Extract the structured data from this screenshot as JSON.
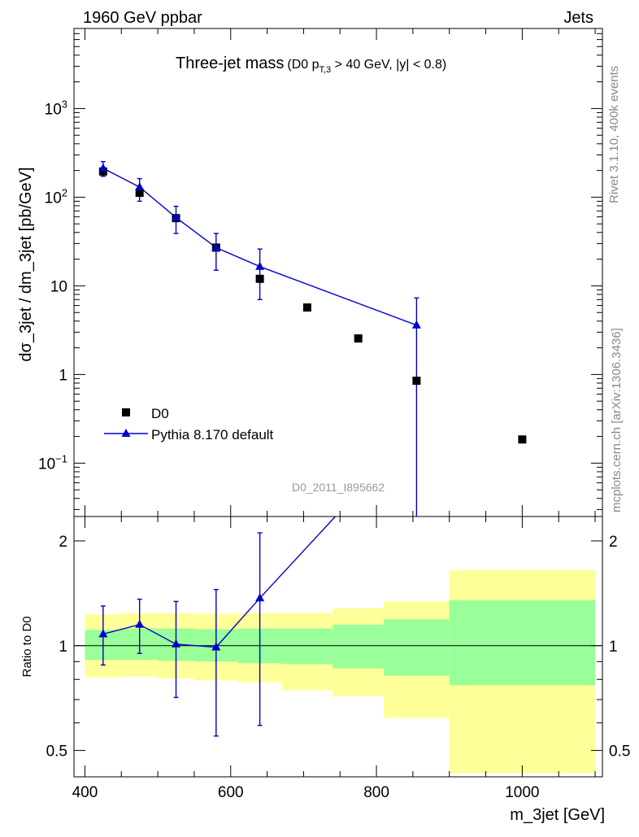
{
  "header": {
    "left": "1960 GeV ppbar",
    "right": "Jets"
  },
  "side_labels": {
    "rivet": "Rivet 3.1.10,  400k events",
    "mcplots": "mcplots.cern.ch [arXiv:1306.3436]"
  },
  "chart_data": {
    "type": "scatter",
    "title": "Three-jet mass",
    "title_cut_prefix": "(D0 p",
    "title_cut_subscript": "T,3",
    "title_cut_suffix": " > 40 GeV, |y| < 0.8)",
    "analysis_id": "D0_2011_I895662",
    "xlabel": "m_3jet [GeV]",
    "ylabel_top": "dσ_3jet / dm_3jet [pb/GeV]",
    "ylabel_ratio": "Ratio to D0",
    "xlim": [
      385,
      1110
    ],
    "ylim_top": [
      0.025,
      8000
    ],
    "yscale_top": "log",
    "ylim_ratio": [
      0.42,
      2.35
    ],
    "yscale_ratio": "log",
    "x_ticks": [
      400,
      600,
      800,
      1000
    ],
    "x_tick_labels": [
      "400",
      "600",
      "800",
      "1000"
    ],
    "y_ticks_top": [
      {
        "value": 0.1,
        "base": "10",
        "exp": "−1"
      },
      {
        "value": 1,
        "base": "1",
        "exp": ""
      },
      {
        "value": 10,
        "base": "10",
        "exp": ""
      },
      {
        "value": 100,
        "base": "10",
        "exp": "2"
      },
      {
        "value": 1000,
        "base": "10",
        "exp": "3"
      }
    ],
    "y_ticks_ratio": [
      {
        "value": 0.5,
        "label": "0.5"
      },
      {
        "value": 1,
        "label": "1"
      },
      {
        "value": 2,
        "label": "2"
      }
    ],
    "legend": {
      "position": "lower-left",
      "entries": [
        "D0",
        "Pythia 8.170 default"
      ]
    },
    "series": [
      {
        "name": "D0",
        "marker": "square",
        "color": "#000000",
        "x": [
          425,
          475,
          525,
          580,
          640,
          705,
          775,
          855,
          1000
        ],
        "y": [
          195,
          112,
          58,
          27,
          12,
          5.7,
          2.55,
          0.85,
          0.185
        ]
      },
      {
        "name": "Pythia 8.170 default",
        "marker": "triangle",
        "color": "#0000cc",
        "x": [
          425,
          475,
          525,
          580,
          640,
          855
        ],
        "y": [
          212,
          130,
          59,
          27,
          16.5,
          3.6
        ],
        "y_err_low": [
          40,
          40,
          20,
          12,
          9.5,
          3.6
        ],
        "y_err_high": [
          40,
          32,
          20,
          12,
          9.5,
          3.7
        ]
      }
    ],
    "ratio_series": {
      "name": "Pythia 8.170 default",
      "x": [
        425,
        475,
        525,
        580,
        640,
        855
      ],
      "y": [
        1.08,
        1.15,
        1.01,
        0.99,
        1.37,
        4.2
      ],
      "y_err_low": [
        0.2,
        0.2,
        0.3,
        0.44,
        0.78
      ],
      "y_err_high": [
        0.22,
        0.21,
        0.33,
        0.46,
        0.74
      ]
    },
    "uncertainty_bands": {
      "colors": {
        "outer": "#ffff99",
        "inner": "#99ff99"
      },
      "edges": [
        400,
        450,
        500,
        550,
        610,
        670,
        740,
        810,
        900,
        1100
      ],
      "outer_low": [
        0.81,
        0.815,
        0.805,
        0.795,
        0.785,
        0.745,
        0.715,
        0.62,
        0.43
      ],
      "outer_high": [
        1.23,
        1.24,
        1.24,
        1.235,
        1.24,
        1.24,
        1.28,
        1.34,
        1.65
      ],
      "inner_low": [
        0.91,
        0.91,
        0.905,
        0.9,
        0.89,
        0.885,
        0.86,
        0.82,
        0.77
      ],
      "inner_high": [
        1.11,
        1.12,
        1.12,
        1.115,
        1.12,
        1.12,
        1.15,
        1.19,
        1.35
      ]
    }
  }
}
